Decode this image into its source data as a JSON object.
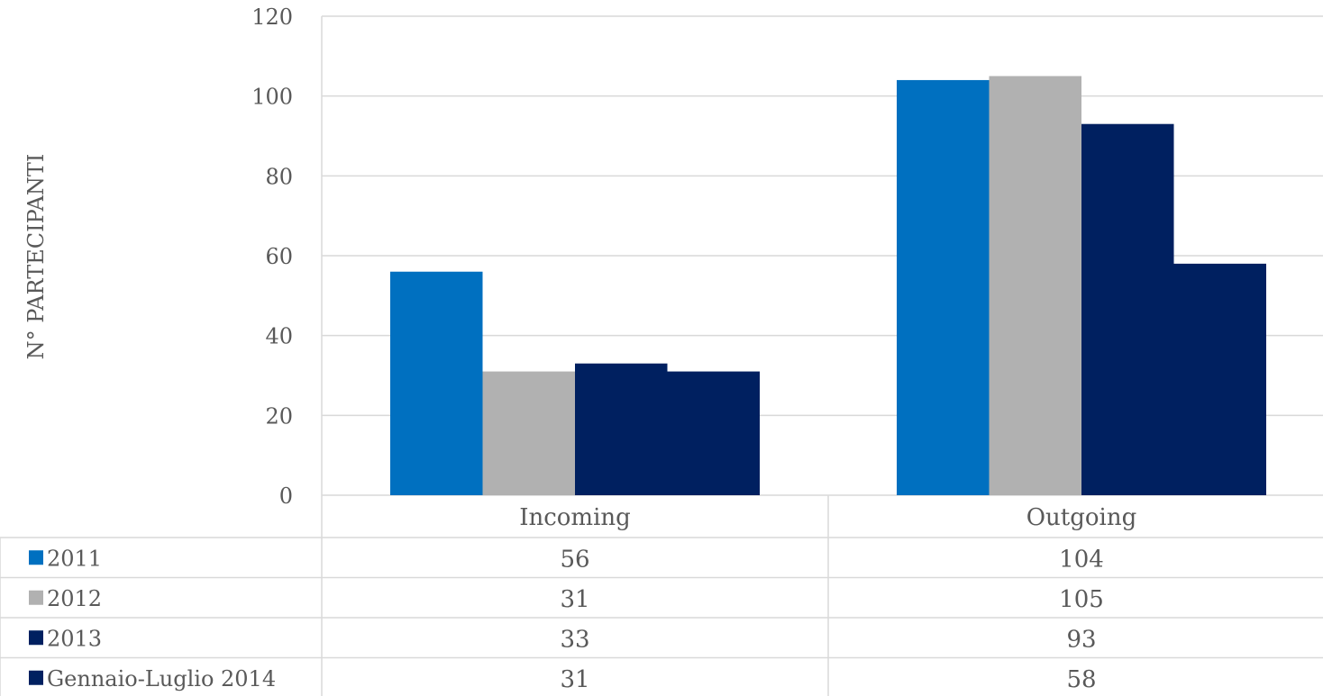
{
  "chart_data": {
    "type": "bar",
    "categories": [
      "Incoming",
      "Outgoing"
    ],
    "series": [
      {
        "name": "2011",
        "values": [
          56,
          104
        ],
        "color": "#0070C0"
      },
      {
        "name": "2012",
        "values": [
          31,
          105
        ],
        "color": "#B1B1B1"
      },
      {
        "name": "2013",
        "values": [
          33,
          93
        ],
        "color": "#002060"
      },
      {
        "name": "Gennaio-Luglio 2014",
        "values": [
          31,
          58
        ],
        "color": "#002060"
      }
    ],
    "ylabel": "N° PARTECIPANTI",
    "ylim": [
      0,
      120
    ],
    "yticks": [
      0,
      20,
      40,
      60,
      80,
      100,
      120
    ],
    "grid": true,
    "legend": "data-table",
    "data_table": true
  }
}
